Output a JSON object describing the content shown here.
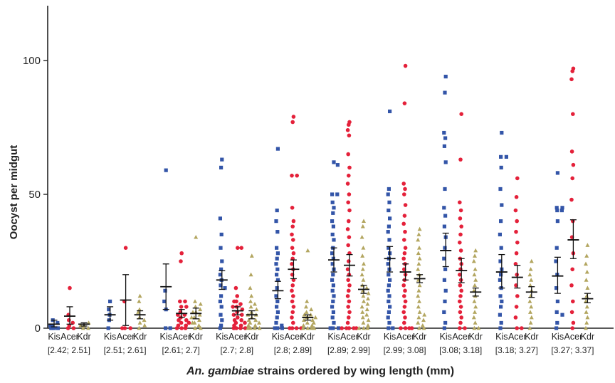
{
  "chart_data": {
    "type": "scatter",
    "ylabel": "Oocyst per midgut",
    "xlabel_italic": "An. gambiae",
    "xlabel_rest": " strains ordered by wing length (mm)",
    "ylim": [
      0,
      120
    ],
    "yticks": [
      0,
      50,
      100
    ],
    "strain_labels": [
      "Kis",
      "Acer",
      "Kdr"
    ],
    "colors": {
      "Kis": "#3355a8",
      "Acer": "#e4213a",
      "Kdr": "#b3a660",
      "axis": "#222222",
      "error_bar": "#111111"
    },
    "markers": {
      "Kis": "square",
      "Acer": "circle",
      "Kdr": "triangle"
    },
    "groups": [
      {
        "bin": "[2.42; 2.51]",
        "Kis": {
          "mean": 1.5,
          "err": [
            0.5,
            3
          ],
          "points": [
            0,
            0,
            1,
            2,
            3,
            0,
            1
          ]
        },
        "Acer": {
          "mean": 4.5,
          "err": [
            1.5,
            8
          ],
          "points": [
            15,
            3,
            0,
            1,
            5,
            2,
            0
          ]
        },
        "Kdr": {
          "mean": 1.5,
          "err": [
            0.8,
            2
          ],
          "points": [
            1,
            0,
            2,
            1,
            0
          ]
        }
      },
      {
        "bin": "[2.51; 2.61]",
        "Kis": {
          "mean": 5,
          "err": [
            3,
            8
          ],
          "points": [
            10,
            3,
            0,
            5,
            7
          ]
        },
        "Acer": {
          "mean": 10.5,
          "err": [
            1,
            20
          ],
          "points": [
            30,
            0,
            0,
            0,
            10
          ]
        },
        "Kdr": {
          "mean": 5,
          "err": [
            3.5,
            6.5
          ],
          "points": [
            12,
            10,
            6,
            4,
            3,
            2,
            0,
            1,
            7
          ]
        }
      },
      {
        "bin": "[2.61; 2.7]",
        "Kis": {
          "mean": 15.5,
          "err": [
            7,
            24
          ],
          "points": [
            59,
            14,
            10,
            0,
            0,
            7
          ]
        },
        "Acer": {
          "mean": 5.5,
          "err": [
            4,
            7
          ],
          "points": [
            28,
            25,
            10,
            8,
            6,
            5,
            4,
            3,
            2,
            1,
            0,
            0,
            0,
            1,
            2,
            3,
            5,
            8,
            10
          ]
        },
        "Kdr": {
          "mean": 5.5,
          "err": [
            3.5,
            7.5
          ],
          "points": [
            34,
            10,
            9,
            8,
            7,
            6,
            5,
            4,
            3,
            2,
            1,
            0,
            0,
            2,
            4,
            6
          ]
        }
      },
      {
        "bin": "[2.7; 2.8]",
        "Kis": {
          "mean": 18,
          "err": [
            14.5,
            21.5
          ],
          "points": [
            63,
            60,
            41,
            35,
            30,
            25,
            22,
            20,
            18,
            16,
            15,
            12,
            10,
            8,
            5,
            3,
            1,
            0
          ]
        },
        "Acer": {
          "mean": 6.5,
          "err": [
            5,
            8
          ],
          "points": [
            30,
            30,
            15,
            12,
            10,
            9,
            8,
            7,
            6,
            5,
            4,
            3,
            2,
            1,
            0,
            0,
            0,
            0,
            1,
            2,
            3,
            5,
            8,
            10
          ]
        },
        "Kdr": {
          "mean": 5,
          "err": [
            3.5,
            6.5
          ],
          "points": [
            27,
            20,
            15,
            12,
            10,
            9,
            8,
            7,
            6,
            5,
            4,
            3,
            2,
            1,
            0,
            0,
            0,
            0,
            1,
            2,
            3,
            5
          ]
        }
      },
      {
        "bin": "[2.8; 2.89]",
        "Kis": {
          "mean": 14,
          "err": [
            11,
            17.5
          ],
          "points": [
            67,
            44,
            40,
            36,
            30,
            28,
            26,
            24,
            22,
            20,
            18,
            15,
            12,
            10,
            8,
            6,
            4,
            2,
            0,
            0,
            0,
            1
          ]
        },
        "Acer": {
          "mean": 22,
          "err": [
            18.5,
            25.5
          ],
          "points": [
            79,
            77,
            57,
            57,
            45,
            40,
            38,
            35,
            33,
            30,
            28,
            26,
            24,
            22,
            20,
            18,
            16,
            14,
            12,
            10,
            8,
            6,
            4,
            2,
            0,
            0,
            0,
            0
          ]
        },
        "Kdr": {
          "mean": 4,
          "err": [
            3,
            5
          ],
          "points": [
            29,
            10,
            8,
            7,
            6,
            5,
            4,
            3,
            2,
            1,
            0,
            0,
            0,
            0,
            1,
            2,
            3,
            4,
            5
          ]
        }
      },
      {
        "bin": "[2.89; 2.99]",
        "Kis": {
          "mean": 25.5,
          "err": [
            21,
            30
          ],
          "points": [
            62,
            61,
            50,
            50,
            47,
            45,
            43,
            40,
            38,
            35,
            33,
            30,
            28,
            26,
            24,
            22,
            20,
            18,
            16,
            14,
            12,
            10,
            8,
            6,
            4,
            2,
            0,
            0,
            0
          ]
        },
        "Acer": {
          "mean": 23.5,
          "err": [
            19.5,
            27.5
          ],
          "points": [
            77,
            76,
            74,
            72,
            65,
            60,
            57,
            54,
            50,
            47,
            44,
            40,
            37,
            34,
            31,
            28,
            25,
            22,
            20,
            18,
            16,
            14,
            12,
            10,
            8,
            6,
            4,
            2,
            0,
            0,
            0,
            0,
            0
          ]
        },
        "Kdr": {
          "mean": 14.5,
          "err": [
            13,
            16
          ],
          "points": [
            40,
            38,
            34,
            30,
            27,
            24,
            22,
            20,
            18,
            16,
            15,
            14,
            13,
            12,
            11,
            10,
            9,
            8,
            7,
            6,
            5,
            4,
            3,
            2,
            1,
            0,
            0,
            0
          ]
        }
      },
      {
        "bin": "[2.99; 3.08]",
        "Kis": {
          "mean": 26,
          "err": [
            21,
            30.5
          ],
          "points": [
            81,
            52,
            50,
            47,
            44,
            41,
            38,
            36,
            33,
            30,
            28,
            26,
            24,
            22,
            20,
            18,
            16,
            14,
            12,
            10,
            8,
            6,
            4,
            2,
            0,
            0
          ]
        },
        "Acer": {
          "mean": 21,
          "err": [
            18,
            24
          ],
          "points": [
            98,
            84,
            54,
            52,
            50,
            46,
            42,
            39,
            36,
            33,
            30,
            28,
            26,
            24,
            22,
            20,
            18,
            16,
            14,
            12,
            10,
            8,
            6,
            4,
            2,
            0,
            0,
            0,
            0
          ]
        },
        "Kdr": {
          "mean": 18.5,
          "err": [
            17,
            20
          ],
          "points": [
            37,
            35,
            33,
            30,
            28,
            26,
            24,
            22,
            20,
            18,
            16,
            14,
            12,
            10,
            8,
            6,
            4,
            2,
            0,
            0,
            1,
            3,
            5
          ]
        }
      },
      {
        "bin": "[3.08; 3.18]",
        "Kis": {
          "mean": 29,
          "err": [
            23,
            35.5
          ],
          "points": [
            94,
            88,
            73,
            71,
            68,
            62,
            52,
            45,
            42,
            38,
            34,
            30,
            26,
            22,
            18,
            14,
            10,
            6,
            2,
            0
          ]
        },
        "Acer": {
          "mean": 21.5,
          "err": [
            17,
            26
          ],
          "points": [
            80,
            63,
            47,
            44,
            41,
            38,
            35,
            32,
            29,
            26,
            24,
            22,
            20,
            18,
            16,
            14,
            12,
            10,
            8,
            6,
            4,
            2,
            0,
            0
          ]
        },
        "Kdr": {
          "mean": 13.5,
          "err": [
            12,
            15
          ],
          "points": [
            29,
            27,
            25,
            22,
            20,
            18,
            16,
            14,
            12,
            10,
            8,
            6,
            4,
            2,
            0,
            0
          ]
        }
      },
      {
        "bin": "[3.18; 3.27]",
        "Kis": {
          "mean": 21,
          "err": [
            15,
            27.5
          ],
          "points": [
            73,
            64,
            64,
            60,
            52,
            46,
            40,
            35,
            30,
            25,
            22,
            20,
            18,
            15,
            12,
            10,
            8,
            5,
            2,
            0
          ]
        },
        "Acer": {
          "mean": 19,
          "err": [
            15,
            23.5
          ],
          "points": [
            56,
            49,
            44,
            40,
            36,
            32,
            28,
            24,
            20,
            16,
            12,
            8,
            4,
            0,
            0
          ]
        },
        "Kdr": {
          "mean": 13.5,
          "err": [
            11.5,
            15.5
          ],
          "points": [
            25,
            22,
            20,
            18,
            16,
            14,
            12,
            10,
            8,
            6,
            4,
            2,
            0
          ]
        }
      },
      {
        "bin": "[3.27; 3.37]",
        "Kis": {
          "mean": 19.5,
          "err": [
            13,
            26.5
          ],
          "points": [
            58,
            45,
            45,
            44,
            44,
            40,
            30,
            25,
            20,
            15,
            10,
            6,
            5,
            2,
            0
          ]
        },
        "Acer": {
          "mean": 33,
          "err": [
            26,
            40.5
          ],
          "points": [
            97,
            96,
            93,
            80,
            66,
            61,
            56,
            48,
            40,
            34,
            28,
            22,
            16,
            10,
            6,
            2,
            0
          ]
        },
        "Kdr": {
          "mean": 11,
          "err": [
            9.5,
            13
          ],
          "points": [
            31,
            27,
            24,
            21,
            18,
            15,
            12,
            10,
            8,
            6,
            4,
            2,
            0
          ]
        }
      }
    ]
  }
}
